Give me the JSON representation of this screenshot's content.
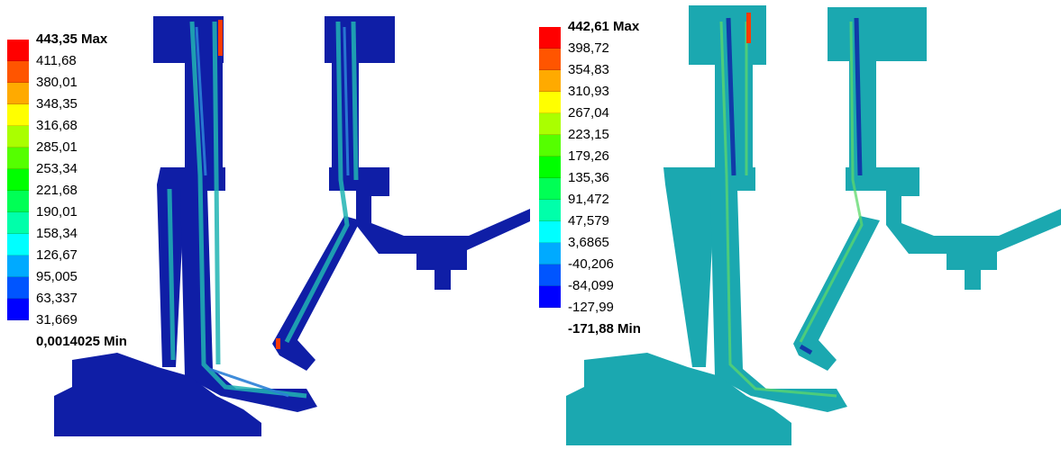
{
  "left_plot": {
    "legend_colors": [
      "#ff0000",
      "#ff5500",
      "#ffaa00",
      "#ffff00",
      "#aaff00",
      "#55ff00",
      "#00ff00",
      "#00ff55",
      "#00ffaa",
      "#00ffff",
      "#00aaff",
      "#0055ff",
      "#0000ff"
    ],
    "legend_labels": [
      "443,35 Max",
      "411,68",
      "380,01",
      "348,35",
      "316,68",
      "285,01",
      "253,34",
      "221,68",
      "190,01",
      "158,34",
      "126,67",
      "95,005",
      "63,337",
      "31,669",
      "0,0014025 Min"
    ]
  },
  "right_plot": {
    "legend_colors": [
      "#ff0000",
      "#ff5500",
      "#ffaa00",
      "#ffff00",
      "#aaff00",
      "#55ff00",
      "#00ff00",
      "#00ff55",
      "#00ffaa",
      "#00ffff",
      "#00aaff",
      "#0055ff",
      "#0000ff"
    ],
    "legend_labels": [
      "442,61 Max",
      "398,72",
      "354,83",
      "310,93",
      "267,04",
      "223,15",
      "179,26",
      "135,36",
      "91,472",
      "47,579",
      "3,6865",
      "-40,206",
      "-84,099",
      "-127,99",
      "-171,88 Min"
    ]
  },
  "colors": {
    "left_body": "#0f1ea6",
    "right_body": "#1ba8b0",
    "accent_stress": "#21b4b3",
    "hot_edge": "#ff3a00"
  }
}
